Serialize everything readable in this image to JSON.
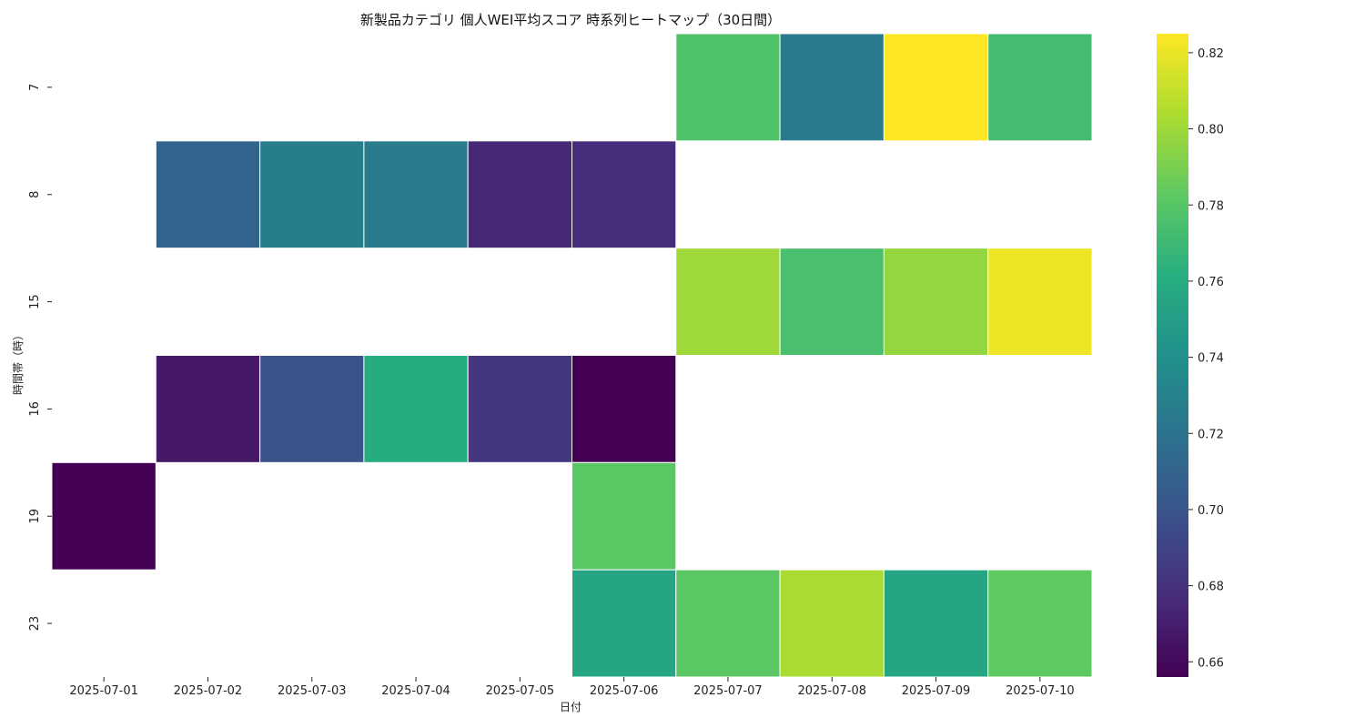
{
  "chart_data": {
    "type": "heatmap",
    "title": "新製品カテゴリ 個人WEI平均スコア 時系列ヒートマップ（30日間）",
    "xlabel": "日付",
    "ylabel": "時間帯（時）",
    "x": [
      "2025-07-01",
      "2025-07-02",
      "2025-07-03",
      "2025-07-04",
      "2025-07-05",
      "2025-07-06",
      "2025-07-07",
      "2025-07-08",
      "2025-07-09",
      "2025-07-10"
    ],
    "y": [
      "7",
      "8",
      "15",
      "16",
      "19",
      "23"
    ],
    "values": [
      [
        null,
        null,
        null,
        null,
        null,
        null,
        0.777,
        0.725,
        0.825,
        0.772
      ],
      [
        null,
        0.71,
        0.727,
        0.726,
        0.675,
        0.677,
        null,
        null,
        null,
        null
      ],
      [
        null,
        null,
        null,
        null,
        null,
        null,
        0.8,
        0.775,
        0.797,
        0.821
      ],
      [
        null,
        0.667,
        0.698,
        0.76,
        0.682,
        0.656,
        null,
        null,
        null,
        null
      ],
      [
        0.656,
        null,
        null,
        null,
        null,
        0.781,
        null,
        null,
        null,
        null
      ],
      [
        null,
        null,
        null,
        null,
        null,
        0.755,
        0.781,
        0.803,
        0.755,
        0.783
      ]
    ],
    "colorbar": {
      "colormap": "viridis",
      "range": [
        0.656,
        0.825
      ],
      "ticks": [
        "0.66",
        "0.68",
        "0.70",
        "0.72",
        "0.74",
        "0.76",
        "0.78",
        "0.80",
        "0.82"
      ]
    },
    "grid": false
  }
}
